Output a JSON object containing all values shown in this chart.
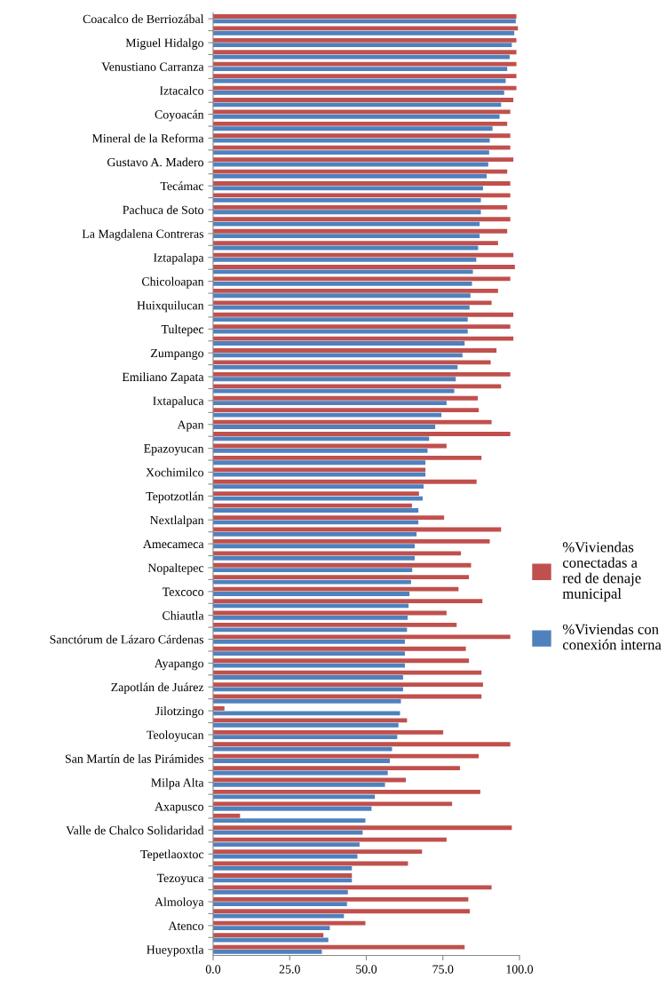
{
  "chart_data": {
    "type": "bar",
    "orientation": "horizontal",
    "categories": [
      "Coacalco de Berriozábal",
      null,
      "Miguel Hidalgo",
      null,
      "Venustiano Carranza",
      null,
      "Iztacalco",
      null,
      "Coyoacán",
      null,
      "Mineral de la Reforma",
      null,
      "Gustavo A. Madero",
      null,
      "Tecámac",
      null,
      "Pachuca de Soto",
      null,
      "La Magdalena Contreras",
      null,
      "Iztapalapa",
      null,
      "Chicoloapan",
      null,
      "Huixquilucan",
      null,
      "Tultepec",
      null,
      "Zumpango",
      null,
      "Emiliano Zapata",
      null,
      "Ixtapaluca",
      null,
      "Apan",
      null,
      "Epazoyucan",
      null,
      "Xochimilco",
      null,
      "Tepotzotlán",
      null,
      "Nextlalpan",
      null,
      "Amecameca",
      null,
      "Nopaltepec",
      null,
      "Texcoco",
      null,
      "Chiautla",
      null,
      "Sanctórum de Lázaro Cárdenas",
      null,
      "Ayapango",
      null,
      "Zapotlán de Juárez",
      null,
      "Jilotzingo",
      null,
      "Teoloyucan",
      null,
      "San Martín de las Pirámides",
      null,
      "Milpa Alta",
      null,
      "Axapusco",
      null,
      "Valle de Chalco Solidaridad",
      null,
      "Tepetlaoxtoc",
      null,
      "Tezoyuca",
      null,
      "Almoloya",
      null,
      "Atenco",
      null,
      "Hueypoxtla"
    ],
    "series": [
      {
        "name": "%Viviendas\nconectadas a\nred de denaje\nmunicipal",
        "color": "#c0504d",
        "values": [
          99,
          99.5,
          99,
          99,
          99,
          99,
          99,
          98,
          97,
          96,
          97,
          97,
          98,
          96,
          97,
          97,
          96,
          97,
          96,
          93,
          98,
          98.5,
          97,
          93,
          90.9,
          98,
          97,
          98,
          92.5,
          90.6,
          97,
          94,
          86.4,
          86.7,
          90.9,
          97,
          76.2,
          87.6,
          69.3,
          86.0,
          67.2,
          64.9,
          75.4,
          94,
          90.3,
          80.9,
          84.2,
          83.5,
          80.1,
          87.9,
          76.2,
          79.5,
          97,
          82.5,
          83.5,
          87.6,
          88.1,
          87.6,
          3.7,
          63.3,
          75.1,
          97,
          86.7,
          80.6,
          62.9,
          87.2,
          78.0,
          8.8,
          97.5,
          76.2,
          68.2,
          63.6,
          45.3,
          90.9,
          83.3,
          83.8,
          49.7,
          36.0,
          82.1
        ]
      },
      {
        "name": "%Viviendas con\nconexión interna",
        "color": "#4f81bd",
        "values": [
          98.8,
          98.3,
          97.5,
          96.8,
          96,
          95.5,
          95,
          94,
          93.5,
          91.2,
          90.3,
          90.1,
          89.8,
          89.3,
          88.1,
          87.4,
          87.4,
          87.0,
          87.0,
          86.5,
          85.9,
          84.8,
          84.5,
          84.0,
          83.7,
          83.1,
          83.1,
          82.1,
          81.4,
          79.8,
          79.2,
          78.7,
          76.2,
          74.5,
          72.5,
          70.5,
          70.0,
          69.3,
          69.3,
          68.7,
          68.4,
          67.0,
          67.0,
          66.4,
          65.8,
          65.8,
          65.0,
          64.6,
          64.1,
          63.8,
          63.5,
          63.3,
          62.6,
          62.6,
          62.6,
          62.0,
          62.0,
          61.3,
          61.0,
          60.5,
          60.1,
          58.4,
          57.7,
          57.0,
          56.1,
          52.8,
          51.7,
          49.7,
          48.8,
          47.8,
          47.1,
          45.3,
          45.3,
          44.0,
          43.7,
          42.7,
          38.1,
          37.6,
          35.5
        ]
      }
    ],
    "xlim": [
      0,
      100
    ],
    "xticks": [
      {
        "value": 0,
        "label": "0.0"
      },
      {
        "value": 25,
        "label": "25.0"
      },
      {
        "value": 50,
        "label": "50.0"
      },
      {
        "value": 75,
        "label": "75.0"
      },
      {
        "value": 100,
        "label": "100.0"
      }
    ],
    "grid": false,
    "legend": "right"
  }
}
